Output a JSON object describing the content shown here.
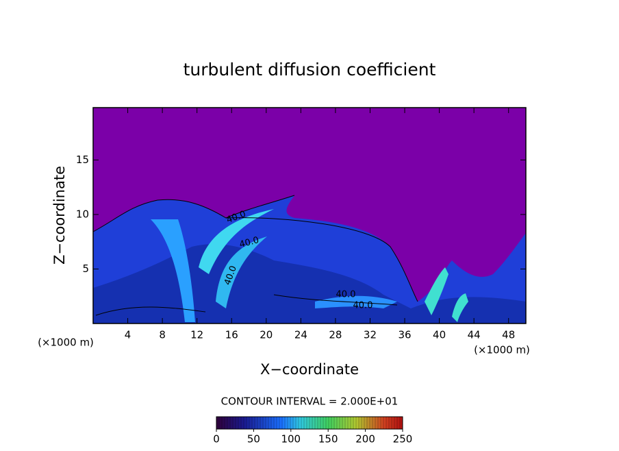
{
  "chart_data": {
    "type": "contour",
    "title": "turbulent diffusion coefficient",
    "x_label": "X−coordinate",
    "y_label": "Z−coordinate",
    "x_unit": "(×1000 m)",
    "y_unit": "(×1000 m)",
    "xlim": [
      0,
      50
    ],
    "xticks": [
      4,
      8,
      12,
      16,
      20,
      24,
      28,
      32,
      36,
      40,
      44,
      48
    ],
    "ylim": [
      0,
      19.8
    ],
    "yticks": [
      5,
      10,
      15
    ],
    "contour_labels": [
      {
        "value": 40,
        "label": "40.0"
      },
      {
        "value": 40,
        "label": "40.0"
      },
      {
        "value": 40,
        "label": "40.0"
      },
      {
        "value": 40,
        "label": "40.0"
      },
      {
        "value": 40,
        "label": "40.0"
      }
    ],
    "contour_interval_label": "CONTOUR INTERVAL = 2.000E+01",
    "colorbar": {
      "lim": [
        0,
        250
      ],
      "ticks": [
        0,
        50,
        100,
        150,
        200,
        250
      ]
    }
  }
}
